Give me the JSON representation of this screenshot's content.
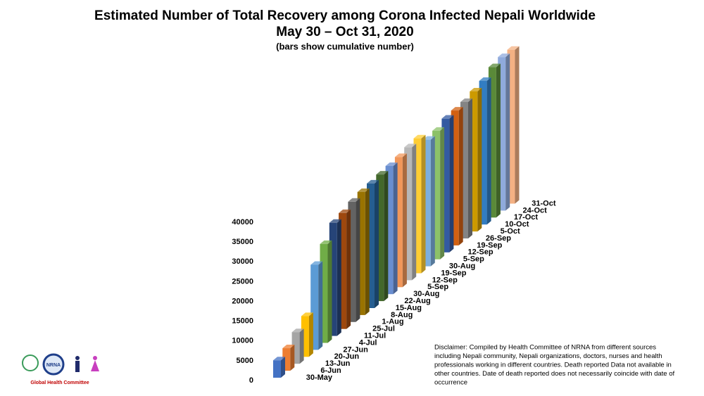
{
  "chart_data": {
    "type": "bar3d",
    "title": "Estimated Number of Total Recovery among Corona Infected Nepali Worldwide",
    "subtitle": "May 30 – Oct 31, 2020",
    "note": "(bars show cumulative number)",
    "categories": [
      "30-May",
      "6-Jun",
      "13-Jun",
      "20-Jun",
      "27-Jun",
      "4-Jul",
      "11-Jul",
      "25-Jul",
      "1-Aug",
      "8-Aug",
      "15-Aug",
      "22-Aug",
      "30-Aug",
      "5-Sep",
      "12-Sep",
      "19-Sep",
      "30-Aug",
      "5-Sep",
      "12-Sep",
      "19-Sep",
      "26-Sep",
      "5-Oct",
      "10-Oct",
      "17-Oct",
      "24-Oct",
      "31-Oct"
    ],
    "values": [
      4400,
      5700,
      8000,
      10300,
      21500,
      25000,
      28600,
      29300,
      30400,
      31100,
      31500,
      32000,
      32400,
      32900,
      33600,
      34100,
      32000,
      32500,
      33800,
      34100,
      34500,
      35400,
      36300,
      38000,
      38800,
      38900
    ],
    "colors": [
      "#4472c4",
      "#ed7d31",
      "#a5a5a5",
      "#ffc000",
      "#5b9bd5",
      "#70ad47",
      "#264478",
      "#9e480e",
      "#636363",
      "#997300",
      "#255e91",
      "#43682b",
      "#698ed0",
      "#f1975a",
      "#b7b7b7",
      "#ffcd33",
      "#7cafdd",
      "#8cc168",
      "#335aa1",
      "#d26012",
      "#848484",
      "#cc9a00",
      "#327dc2",
      "#5a8a39",
      "#8faadc",
      "#f4b183"
    ],
    "ylim": [
      0,
      40000
    ],
    "yticks": [
      0,
      5000,
      10000,
      15000,
      20000,
      25000,
      30000,
      35000,
      40000
    ],
    "disclaimer": [
      "Disclaimer: Compiled by Health Committee  of NRNA from different sources",
      "including Nepali community, Nepali organizations, doctors, nurses and health",
      "professionals working in different countries. Death reported Data not available in",
      "other countries. Date of death reported does not necessarily coincide with date of",
      "occurrence"
    ],
    "logo_text": "NRNA",
    "logo_caption": "Global Health Committee"
  }
}
